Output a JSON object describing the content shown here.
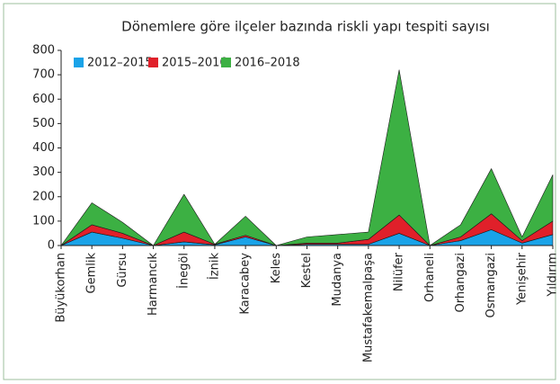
{
  "chart_data": {
    "type": "area",
    "stacked": true,
    "title": "Dönemlere göre ilçeler bazında riskli yapı tespiti sayısı",
    "categories": [
      "Büyükorhan",
      "Gemlik",
      "Gürsu",
      "Harmancık",
      "İnegöl",
      "İznik",
      "Karacabey",
      "Keles",
      "Kestel",
      "Mudanya",
      "Mustafakemalpaşa",
      "Nilüfer",
      "Orhaneli",
      "Orhangazi",
      "Osmangazi",
      "Yenişehir",
      "Yıldırım"
    ],
    "series": [
      {
        "name": "2012–2015",
        "color": "#1aa3e8",
        "values": [
          0,
          55,
          30,
          0,
          15,
          3,
          35,
          0,
          5,
          5,
          5,
          50,
          0,
          20,
          65,
          10,
          45
        ]
      },
      {
        "name": "2015–2016",
        "color": "#e0202a",
        "values": [
          0,
          30,
          20,
          0,
          40,
          2,
          7,
          0,
          5,
          5,
          20,
          75,
          0,
          15,
          65,
          10,
          55
        ]
      },
      {
        "name": "2016–2018",
        "color": "#3cb043",
        "values": [
          0,
          90,
          45,
          0,
          155,
          0,
          78,
          0,
          25,
          35,
          30,
          595,
          0,
          50,
          185,
          15,
          190
        ]
      }
    ],
    "ylim": [
      0,
      800
    ],
    "yticks": [
      0,
      100,
      200,
      300,
      400,
      500,
      600,
      700,
      800
    ],
    "legend": "top-left"
  }
}
